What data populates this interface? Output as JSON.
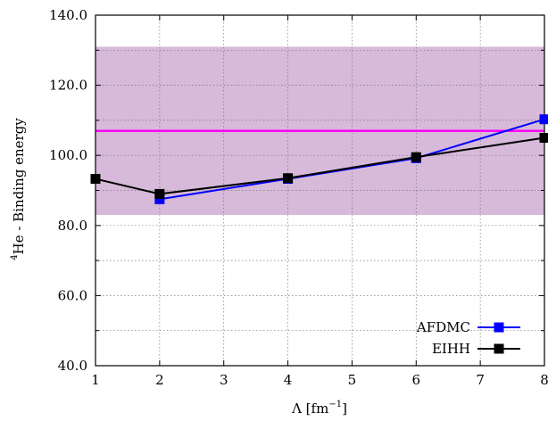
{
  "chart_data": {
    "type": "line",
    "xlabel": "Λ [fm",
    "xlabel_sup": "−1",
    "xlabel_suffix": "]",
    "ylabel_sup": "4",
    "ylabel": "He - Binding energy",
    "xlim": [
      1,
      8
    ],
    "ylim": [
      40,
      140
    ],
    "x_ticks": [
      1,
      2,
      3,
      4,
      5,
      6,
      7,
      8
    ],
    "x_tick_labels": [
      "1",
      "2",
      "3",
      "4",
      "5",
      "6",
      "7",
      "8"
    ],
    "y_ticks": [
      40,
      60,
      80,
      100,
      120,
      140
    ],
    "y_tick_labels": [
      "40.0",
      "60.0",
      "80.0",
      "100.0",
      "120.0",
      "140.0"
    ],
    "grid": true,
    "legend_position": "bottom-right",
    "band": {
      "y_low": 83,
      "y_high": 131,
      "color": "#d7b9d9"
    },
    "reference_line": {
      "y": 107,
      "color": "#ff00ff"
    },
    "series": [
      {
        "name": "AFDMC",
        "color": "#0000ff",
        "x": [
          2,
          4,
          6,
          8
        ],
        "y": [
          87.5,
          93.3,
          99.2,
          110.3
        ]
      },
      {
        "name": "EIHH",
        "color": "#000000",
        "x": [
          1,
          2,
          4,
          6,
          8
        ],
        "y": [
          93.3,
          89.0,
          93.5,
          99.5,
          105.0
        ]
      }
    ]
  }
}
